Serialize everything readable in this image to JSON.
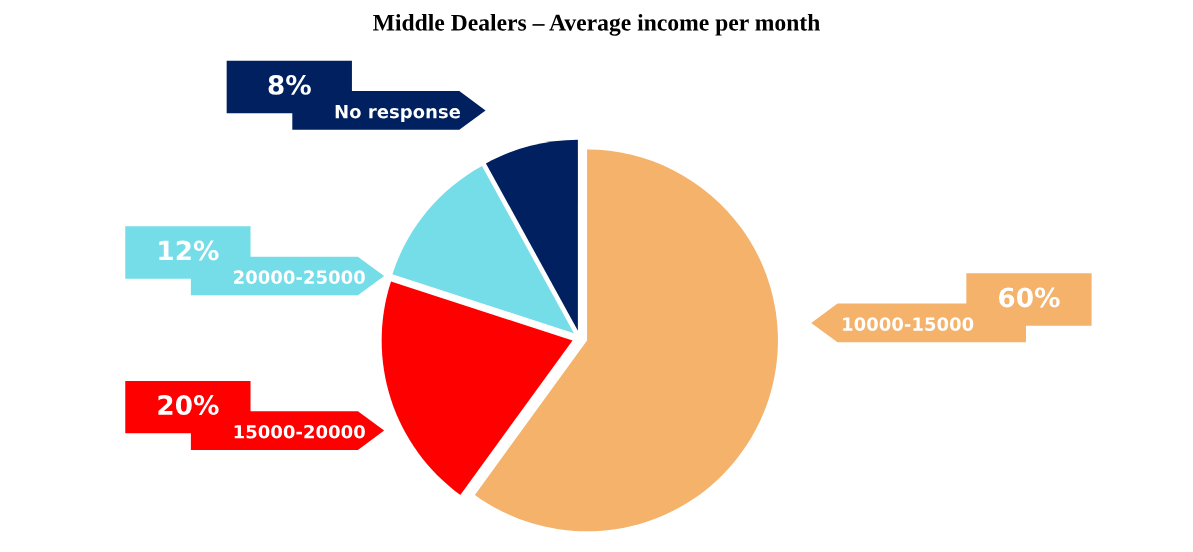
{
  "chart_data": {
    "type": "pie",
    "title": "Middle Dealers – Average income per month",
    "categories": [
      "10000-15000",
      "15000-20000",
      "20000-25000",
      "No response"
    ],
    "values": [
      60,
      20,
      12,
      8
    ],
    "value_labels": [
      "60%",
      "20%",
      "12%",
      "8%"
    ],
    "colors": [
      "#f4b26b",
      "#ff0000",
      "#74dde8",
      "#002060"
    ]
  }
}
